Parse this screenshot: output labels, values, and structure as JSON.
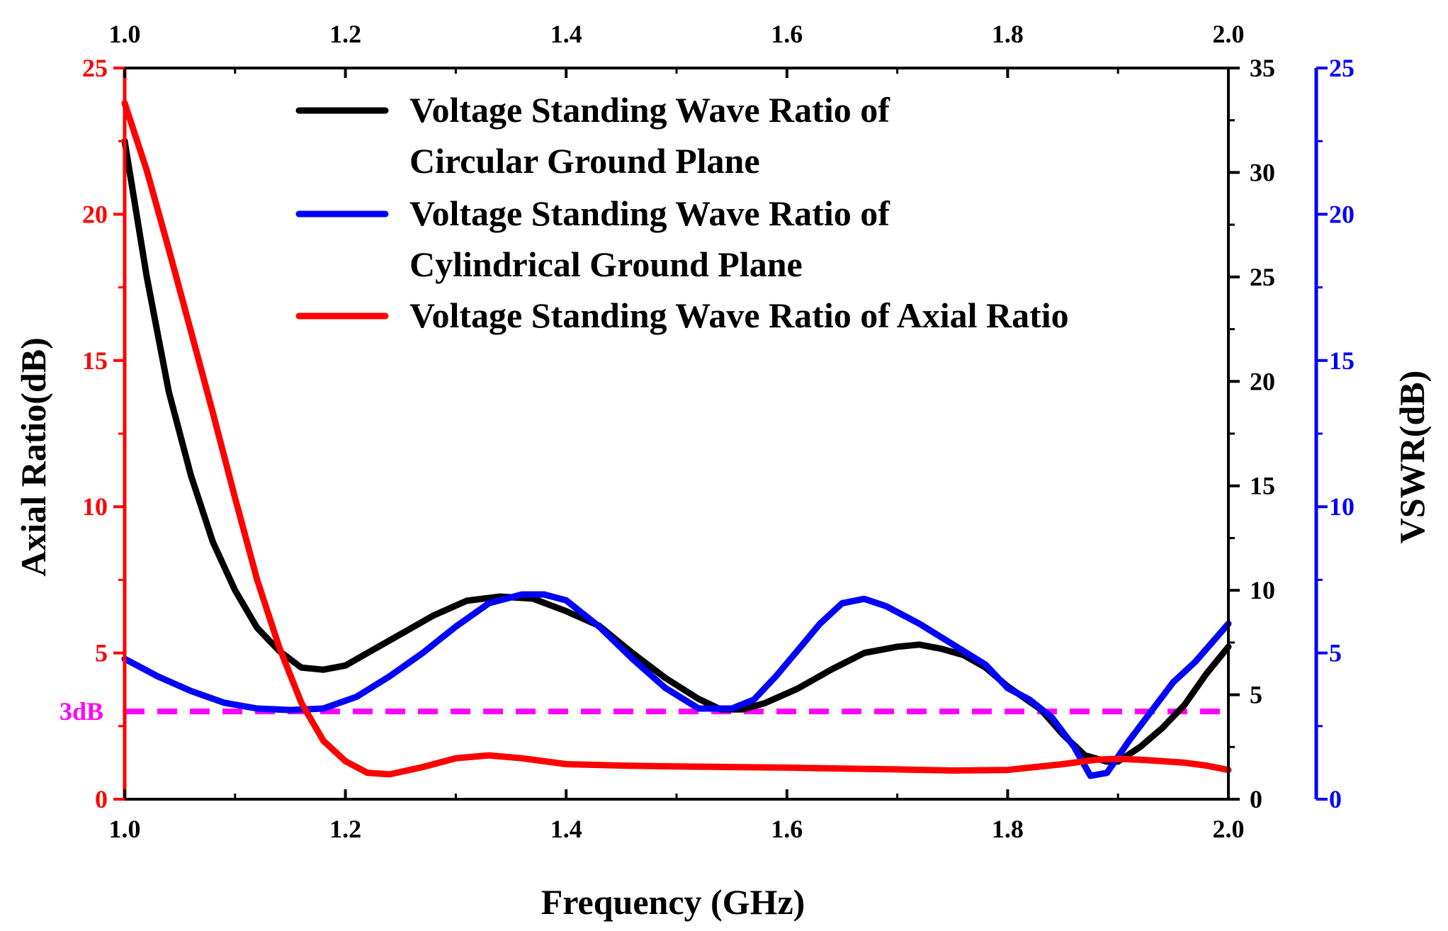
{
  "chart_data": {
    "type": "line",
    "xlabel": "Frequency (GHz)",
    "ylabel_left": "Axial Ratio(dB)",
    "ylabel_right": "VSWR(dB)",
    "xlim": [
      1.0,
      2.0
    ],
    "x_ticks": [
      "1.0",
      "1.2",
      "1.4",
      "1.6",
      "1.8",
      "2.0"
    ],
    "axes": {
      "left": {
        "lim": [
          0,
          25
        ],
        "ticks": [
          "0",
          "5",
          "10",
          "15",
          "20",
          "25"
        ],
        "color": "#ff0000"
      },
      "right_inner": {
        "lim": [
          0,
          35
        ],
        "ticks": [
          "0",
          "5",
          "10",
          "15",
          "20",
          "25",
          "30",
          "35"
        ],
        "color": "#000000"
      },
      "right_outer": {
        "lim": [
          0,
          25
        ],
        "ticks": [
          "0",
          "5",
          "10",
          "15",
          "20",
          "25"
        ],
        "color": "#0000ff"
      }
    },
    "annotation": {
      "text": "3dB",
      "y": 3,
      "color": "#ff00ff"
    },
    "legend": {
      "placement": "top-center",
      "entries": [
        {
          "lines": [
            "Voltage Standing Wave Ratio of",
            "Circular Ground Plane"
          ],
          "color": "#000000"
        },
        {
          "lines": [
            "Voltage Standing Wave Ratio of",
            "Cylindrical Ground Plane"
          ],
          "color": "#0000ff"
        },
        {
          "lines": [
            "Voltage Standing Wave Ratio of Axial Ratio"
          ],
          "color": "#ff0000"
        }
      ]
    },
    "series": [
      {
        "color": "#000000",
        "axis": "right_inner",
        "x": [
          1.0,
          1.02,
          1.04,
          1.06,
          1.08,
          1.1,
          1.12,
          1.14,
          1.16,
          1.18,
          1.2,
          1.22,
          1.25,
          1.28,
          1.31,
          1.34,
          1.37,
          1.4,
          1.43,
          1.46,
          1.49,
          1.52,
          1.54,
          1.56,
          1.58,
          1.61,
          1.64,
          1.67,
          1.7,
          1.72,
          1.74,
          1.76,
          1.78,
          1.8,
          1.83,
          1.85,
          1.87,
          1.89,
          1.9,
          1.92,
          1.94,
          1.96,
          1.98,
          2.0
        ],
        "values": [
          31.5,
          25.0,
          19.5,
          15.5,
          12.3,
          10.0,
          8.2,
          7.1,
          6.3,
          6.2,
          6.4,
          7.0,
          7.9,
          8.8,
          9.5,
          9.7,
          9.6,
          9.0,
          8.3,
          7.0,
          5.8,
          4.8,
          4.3,
          4.3,
          4.6,
          5.3,
          6.2,
          7.0,
          7.3,
          7.4,
          7.2,
          6.9,
          6.3,
          5.4,
          4.3,
          3.1,
          2.1,
          1.8,
          1.8,
          2.5,
          3.4,
          4.5,
          6.0,
          7.3
        ]
      },
      {
        "color": "#0000ff",
        "axis": "right_outer",
        "x": [
          1.0,
          1.03,
          1.06,
          1.09,
          1.12,
          1.15,
          1.18,
          1.21,
          1.24,
          1.27,
          1.3,
          1.33,
          1.36,
          1.38,
          1.4,
          1.43,
          1.46,
          1.49,
          1.52,
          1.55,
          1.57,
          1.59,
          1.61,
          1.63,
          1.65,
          1.67,
          1.69,
          1.72,
          1.75,
          1.78,
          1.8,
          1.82,
          1.84,
          1.86,
          1.875,
          1.89,
          1.91,
          1.93,
          1.95,
          1.97,
          2.0
        ],
        "values": [
          4.8,
          4.2,
          3.7,
          3.3,
          3.1,
          3.05,
          3.1,
          3.5,
          4.2,
          5.0,
          5.9,
          6.7,
          7.0,
          7.0,
          6.8,
          5.9,
          4.8,
          3.8,
          3.1,
          3.1,
          3.4,
          4.2,
          5.1,
          6.0,
          6.7,
          6.85,
          6.6,
          6.0,
          5.3,
          4.6,
          3.8,
          3.4,
          2.8,
          1.8,
          0.8,
          0.9,
          2.0,
          3.0,
          4.0,
          4.7,
          6.0
        ]
      },
      {
        "color": "#ff0000",
        "axis": "left",
        "x": [
          1.0,
          1.02,
          1.04,
          1.06,
          1.08,
          1.1,
          1.12,
          1.14,
          1.16,
          1.18,
          1.2,
          1.22,
          1.24,
          1.27,
          1.3,
          1.33,
          1.36,
          1.4,
          1.45,
          1.5,
          1.55,
          1.6,
          1.65,
          1.7,
          1.75,
          1.8,
          1.85,
          1.88,
          1.9,
          1.92,
          1.94,
          1.96,
          1.98,
          2.0
        ],
        "values": [
          23.8,
          21.5,
          18.8,
          16.0,
          13.2,
          10.3,
          7.5,
          5.2,
          3.3,
          2.0,
          1.3,
          0.9,
          0.85,
          1.1,
          1.4,
          1.5,
          1.4,
          1.2,
          1.15,
          1.12,
          1.1,
          1.08,
          1.05,
          1.02,
          0.98,
          1.0,
          1.2,
          1.35,
          1.38,
          1.35,
          1.3,
          1.25,
          1.15,
          1.0
        ]
      }
    ]
  }
}
